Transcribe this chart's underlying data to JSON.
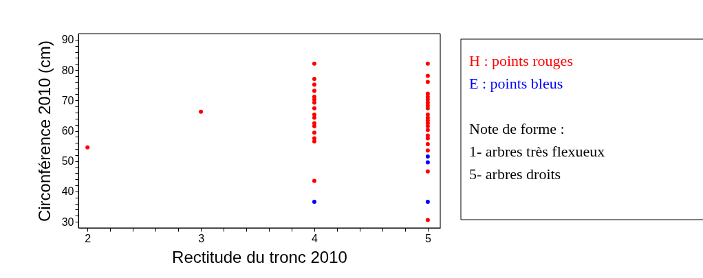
{
  "chart_data": {
    "type": "scatter",
    "xlabel": "Rectitude du tronc 2010",
    "ylabel": "Circonférence 2010 (cm)",
    "xlim": [
      1.92,
      5.11
    ],
    "ylim": [
      28,
      92
    ],
    "xticks": [
      2,
      {
        "value": 2.2,
        "label": null
      },
      {
        "value": 2.4,
        "label": null
      },
      {
        "value": 2.6,
        "label": null
      },
      {
        "value": 2.8,
        "label": null
      },
      3,
      {
        "value": 3.2,
        "label": null
      },
      {
        "value": 3.4,
        "label": null
      },
      {
        "value": 3.6,
        "label": null
      },
      {
        "value": 3.8,
        "label": null
      },
      4,
      {
        "value": 4.2,
        "label": null
      },
      {
        "value": 4.4,
        "label": null
      },
      {
        "value": 4.6,
        "label": null
      },
      {
        "value": 4.8,
        "label": null
      },
      5
    ],
    "yticks": [
      30,
      {
        "value": 32,
        "label": null
      },
      {
        "value": 34,
        "label": null
      },
      {
        "value": 36,
        "label": null
      },
      {
        "value": 38,
        "label": null
      },
      40,
      {
        "value": 42,
        "label": null
      },
      {
        "value": 44,
        "label": null
      },
      {
        "value": 46,
        "label": null
      },
      {
        "value": 48,
        "label": null
      },
      50,
      {
        "value": 52,
        "label": null
      },
      {
        "value": 54,
        "label": null
      },
      {
        "value": 56,
        "label": null
      },
      {
        "value": 58,
        "label": null
      },
      60,
      {
        "value": 62,
        "label": null
      },
      {
        "value": 64,
        "label": null
      },
      {
        "value": 66,
        "label": null
      },
      {
        "value": 68,
        "label": null
      },
      70,
      {
        "value": 72,
        "label": null
      },
      {
        "value": 74,
        "label": null
      },
      {
        "value": 76,
        "label": null
      },
      {
        "value": 78,
        "label": null
      },
      80,
      {
        "value": 82,
        "label": null
      },
      {
        "value": 84,
        "label": null
      },
      {
        "value": 86,
        "label": null
      },
      {
        "value": 88,
        "label": null
      },
      90
    ],
    "grid": false,
    "marker": "circle",
    "series": [
      {
        "name": "H : points rouges",
        "color": "#ff0000",
        "x": [
          2,
          3,
          4,
          4,
          4,
          4,
          4,
          4,
          4,
          4,
          4,
          4,
          4,
          4,
          4,
          4,
          4,
          4,
          5,
          5,
          5,
          5,
          5,
          5,
          5,
          5,
          5,
          5,
          5,
          5,
          5,
          5,
          5,
          5,
          5,
          5,
          5,
          5,
          5
        ],
        "values": [
          54.5,
          66.3,
          82.1,
          77.1,
          75.2,
          73.2,
          71.2,
          70.3,
          69.3,
          67.4,
          65.3,
          64.3,
          62.5,
          61.5,
          59.4,
          57.5,
          56.5,
          43.5,
          82.1,
          78.1,
          76.1,
          72.2,
          71.2,
          70.3,
          69.3,
          68.3,
          67.4,
          65.3,
          64.3,
          63.4,
          62.5,
          61.5,
          60.3,
          58.4,
          57.5,
          55.6,
          53.5,
          46.6,
          30.6
        ]
      },
      {
        "name": "E : points bleus",
        "color": "#0000ff",
        "x": [
          4,
          5,
          5,
          5
        ],
        "values": [
          36.6,
          51.5,
          49.6,
          36.6
        ]
      }
    ],
    "annotations": [
      "Note de forme :",
      "1- arbres très flexueux",
      "5- arbres droits"
    ]
  }
}
